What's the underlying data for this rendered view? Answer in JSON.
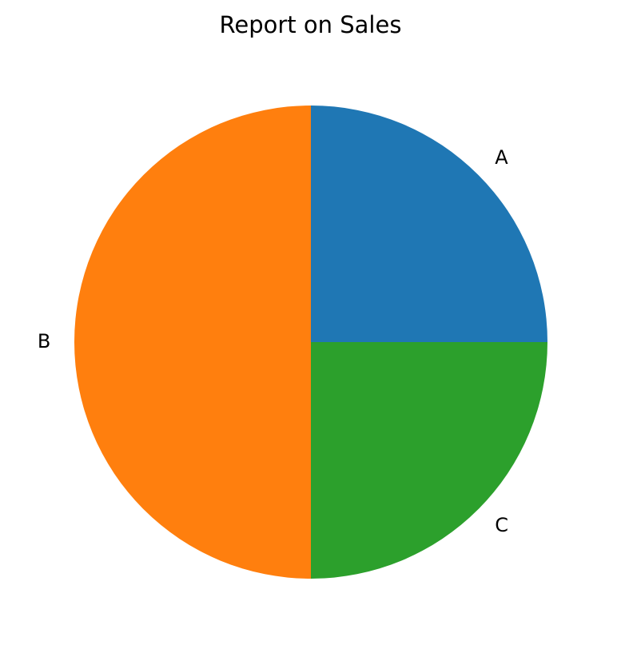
{
  "chart_data": {
    "type": "pie",
    "title": "Report on Sales",
    "categories": [
      "A",
      "B",
      "C"
    ],
    "values": [
      25,
      50,
      25
    ],
    "colors": [
      "#1f77b4",
      "#ff7f0e",
      "#2ca02c"
    ],
    "start_angle": 0,
    "direction": "counterclockwise"
  }
}
